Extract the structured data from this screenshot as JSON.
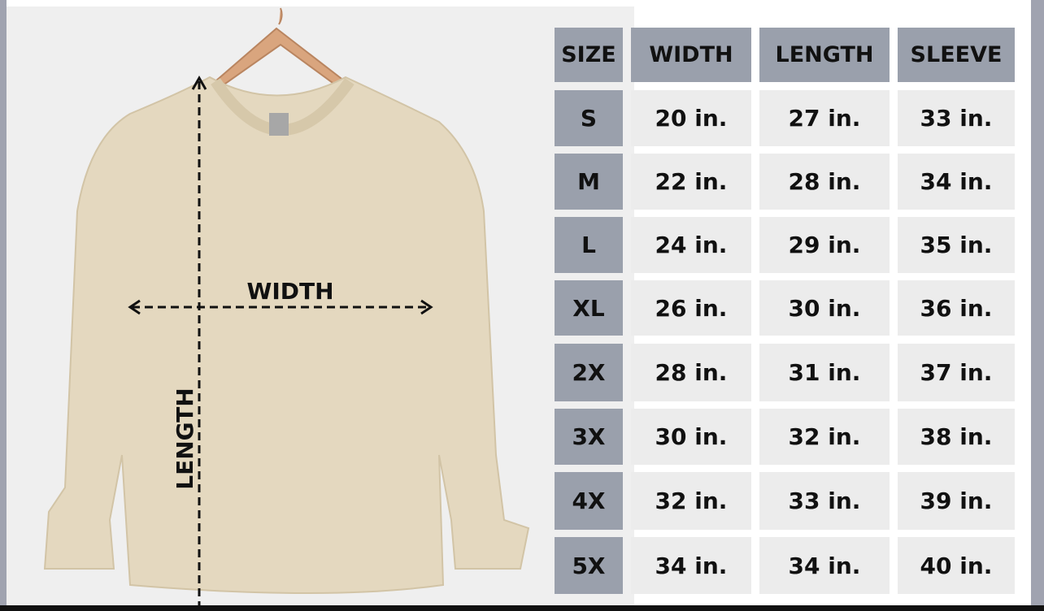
{
  "diagram": {
    "width_label": "WIDTH",
    "length_label": "LENGTH",
    "garment_color": "#e4d8bf"
  },
  "table": {
    "headers": [
      "SIZE",
      "WIDTH",
      "LENGTH",
      "SLEEVE"
    ],
    "rows": [
      [
        "S",
        "20 in.",
        "27 in.",
        "33 in."
      ],
      [
        "M",
        "22 in.",
        "28 in.",
        "34 in."
      ],
      [
        "L",
        "24 in.",
        "29 in.",
        "35 in."
      ],
      [
        "XL",
        "26 in.",
        "30 in.",
        "36 in."
      ],
      [
        "2X",
        "28 in.",
        "31 in.",
        "37 in."
      ],
      [
        "3X",
        "30 in.",
        "32 in.",
        "38 in."
      ],
      [
        "4X",
        "32 in.",
        "33 in.",
        "39 in."
      ],
      [
        "5X",
        "34 in.",
        "34 in.",
        "40 in."
      ]
    ],
    "header_color": "#9aa0ac",
    "cell_color": "#ececec"
  }
}
